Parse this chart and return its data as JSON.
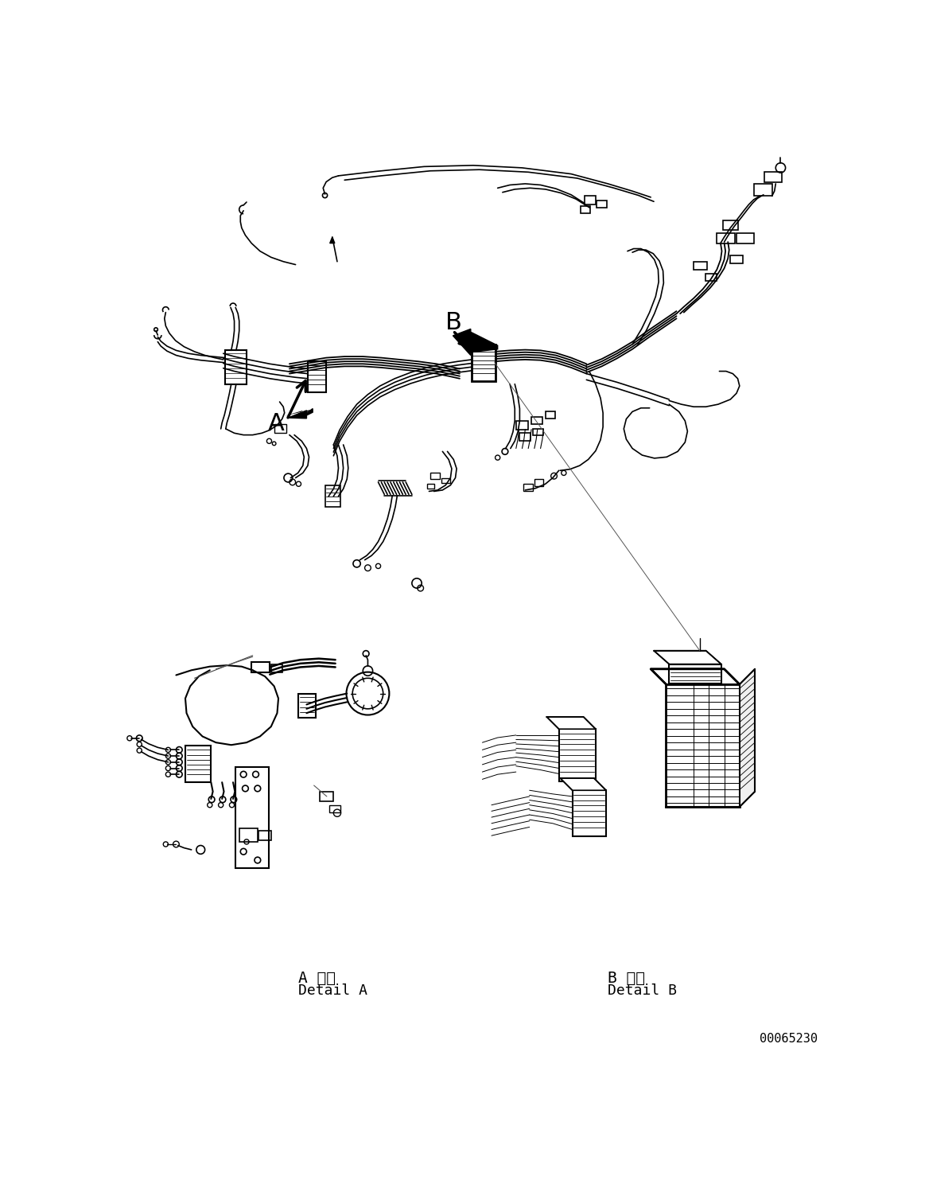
{
  "background_color": "#ffffff",
  "figure_width": 11.63,
  "figure_height": 14.88,
  "part_number": "00065230",
  "label_A_japanese": "A 詳細",
  "label_A_english": "Detail A",
  "label_B_japanese": "B 詳細",
  "label_B_english": "Detail B",
  "text_color": "#000000",
  "line_color": "#000000"
}
